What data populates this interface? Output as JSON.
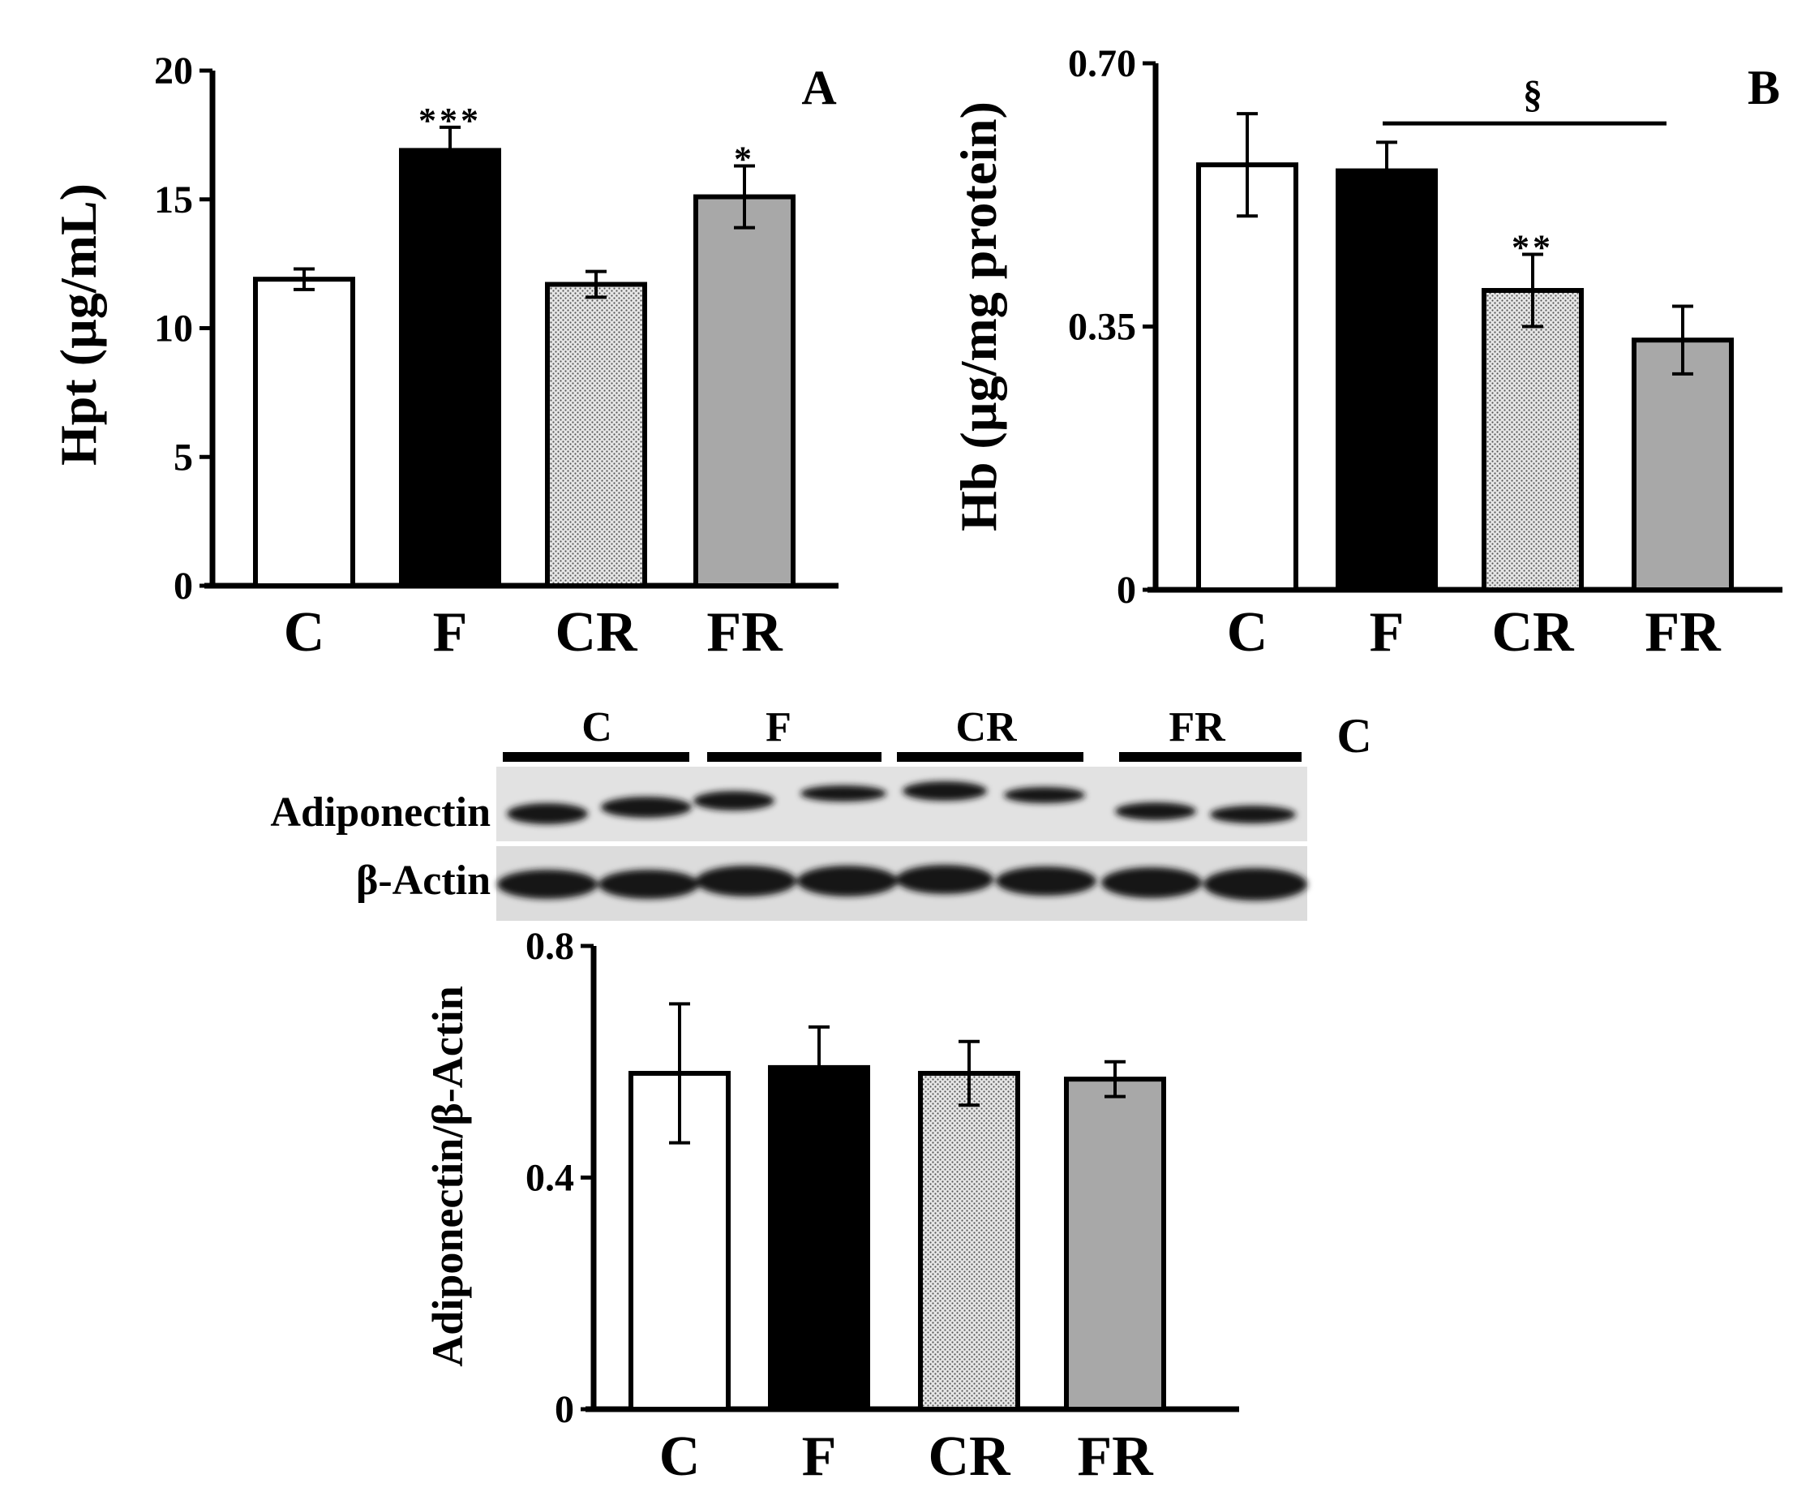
{
  "colors": {
    "C": "#ffffff",
    "F": "#000000",
    "CR": "#d2d2d2",
    "FR": "#a8a8a8",
    "axis": "#000000"
  },
  "chart_data": [
    {
      "panel": "A",
      "type": "bar",
      "categories": [
        "C",
        "F",
        "CR",
        "FR"
      ],
      "values": [
        11.9,
        16.9,
        11.7,
        15.1
      ],
      "errors": [
        0.4,
        0.9,
        0.5,
        1.2
      ],
      "significance": [
        "",
        "***",
        "",
        "*"
      ],
      "ylabel": "Hpt (µg/mL)",
      "ylim": [
        0,
        20
      ],
      "yticks": [
        "0",
        "5",
        "10",
        "15",
        "20"
      ],
      "ytick_values": [
        0,
        5,
        10,
        15,
        20
      ]
    },
    {
      "panel": "B",
      "type": "bar",
      "categories": [
        "C",
        "F",
        "CR",
        "FR"
      ],
      "values": [
        0.565,
        0.557,
        0.398,
        0.332
      ],
      "errors": [
        0.068,
        0.038,
        0.048,
        0.045
      ],
      "significance": [
        "",
        "",
        "**",
        ""
      ],
      "bracket": {
        "label": "§",
        "from": "F",
        "to": "FR",
        "y": 0.62
      },
      "ylabel": "Hb (µg/mg protein)",
      "ylim": [
        0,
        0.7
      ],
      "yticks": [
        "0",
        "0.35",
        "0.70"
      ],
      "ytick_values": [
        0,
        0.35,
        0.7
      ]
    },
    {
      "panel": "C",
      "type": "bar",
      "categories": [
        "C",
        "F",
        "CR",
        "FR"
      ],
      "values": [
        0.58,
        0.59,
        0.58,
        0.57
      ],
      "errors": [
        0.12,
        0.07,
        0.055,
        0.03
      ],
      "significance": [
        "",
        "",
        "",
        ""
      ],
      "ylabel": "Adiponectin/β-Actin",
      "ylim": [
        0,
        0.8
      ],
      "yticks": [
        "0",
        "0.4",
        "0.8"
      ],
      "ytick_values": [
        0,
        0.4,
        0.8
      ]
    }
  ],
  "blot": {
    "group_labels": [
      "C",
      "F",
      "CR",
      "FR"
    ],
    "row_labels": [
      "Adiponectin",
      "β-Actin"
    ]
  }
}
